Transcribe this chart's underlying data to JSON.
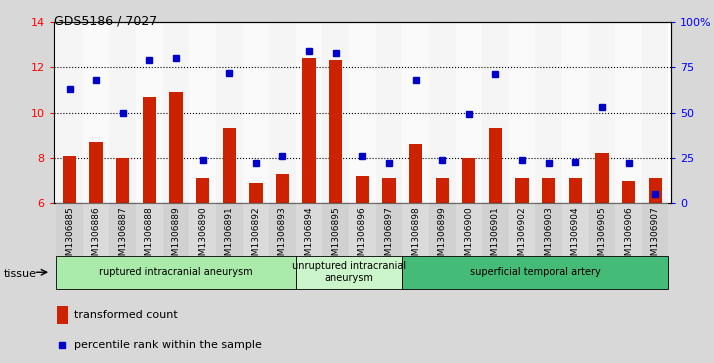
{
  "title": "GDS5186 / 7027",
  "samples": [
    "GSM1306885",
    "GSM1306886",
    "GSM1306887",
    "GSM1306888",
    "GSM1306889",
    "GSM1306890",
    "GSM1306891",
    "GSM1306892",
    "GSM1306893",
    "GSM1306894",
    "GSM1306895",
    "GSM1306896",
    "GSM1306897",
    "GSM1306898",
    "GSM1306899",
    "GSM1306900",
    "GSM1306901",
    "GSM1306902",
    "GSM1306903",
    "GSM1306904",
    "GSM1306905",
    "GSM1306906",
    "GSM1306907"
  ],
  "transformed_count": [
    8.1,
    8.7,
    8.0,
    10.7,
    10.9,
    7.1,
    9.3,
    6.9,
    7.3,
    12.4,
    12.3,
    7.2,
    7.1,
    8.6,
    7.1,
    8.0,
    9.3,
    7.1,
    7.1,
    7.1,
    8.2,
    7.0,
    7.1
  ],
  "percentile_rank": [
    63,
    68,
    50,
    79,
    80,
    24,
    72,
    22,
    26,
    84,
    83,
    26,
    22,
    68,
    24,
    49,
    71,
    24,
    22,
    23,
    53,
    22,
    5
  ],
  "groups": [
    {
      "label": "ruptured intracranial aneurysm",
      "start": 0,
      "end": 9,
      "color": "#aaeaaa"
    },
    {
      "label": "unruptured intracranial\naneurysm",
      "start": 9,
      "end": 13,
      "color": "#ccf5cc"
    },
    {
      "label": "superficial temporal artery",
      "start": 13,
      "end": 23,
      "color": "#44bb77"
    }
  ],
  "ylim_left": [
    6,
    14
  ],
  "ylim_right": [
    0,
    100
  ],
  "yticks_left": [
    6,
    8,
    10,
    12,
    14
  ],
  "yticks_right": [
    0,
    25,
    50,
    75,
    100
  ],
  "bar_color": "#cc2200",
  "dot_color": "#0000cc",
  "bg_color": "#d8d8d8",
  "plot_bg": "#ffffff",
  "legend_items": [
    {
      "label": "transformed count",
      "color": "#cc2200"
    },
    {
      "label": "percentile rank within the sample",
      "color": "#0000cc"
    }
  ],
  "tissue_label": "tissue",
  "bar_width": 0.5,
  "group_boundaries": [
    9,
    13
  ]
}
